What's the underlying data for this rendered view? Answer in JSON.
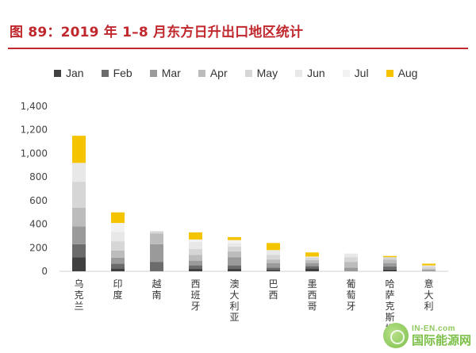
{
  "title": "图 89：2019 年 1–8 月东方日升出口地区统计",
  "watermark": {
    "top": "IN-EN.com",
    "bottom": "国际能源网"
  },
  "chart_data": {
    "type": "bar",
    "stacked": true,
    "title": "",
    "xlabel": "",
    "ylabel": "",
    "ylim": [
      0,
      1400
    ],
    "yticks": [
      "0",
      "200",
      "400",
      "600",
      "800",
      "1,000",
      "1,200",
      "1,400"
    ],
    "ytick_values": [
      0,
      200,
      400,
      600,
      800,
      1000,
      1200,
      1400
    ],
    "grid": false,
    "legend_position": "top",
    "categories": [
      "乌克兰",
      "印度",
      "越南",
      "西班牙",
      "澳大利亚",
      "巴西",
      "墨西哥",
      "葡萄牙",
      "哈萨克斯坦",
      "意大利"
    ],
    "series": [
      {
        "name": "Jan",
        "color": "#404040",
        "values": [
          120,
          25,
          0,
          20,
          20,
          10,
          25,
          0,
          15,
          0
        ]
      },
      {
        "name": "Feb",
        "color": "#6b6b6b",
        "values": [
          110,
          40,
          80,
          30,
          30,
          20,
          20,
          0,
          25,
          0
        ]
      },
      {
        "name": "Mar",
        "color": "#9a9a9a",
        "values": [
          150,
          50,
          150,
          40,
          70,
          40,
          25,
          30,
          30,
          10
        ]
      },
      {
        "name": "Apr",
        "color": "#bcbcbc",
        "values": [
          160,
          60,
          90,
          50,
          50,
          30,
          25,
          50,
          30,
          10
        ]
      },
      {
        "name": "May",
        "color": "#d6d6d6",
        "values": [
          220,
          80,
          20,
          50,
          40,
          40,
          20,
          40,
          20,
          20
        ]
      },
      {
        "name": "Jun",
        "color": "#e8e8e8",
        "values": [
          160,
          80,
          0,
          60,
          30,
          40,
          10,
          30,
          0,
          10
        ]
      },
      {
        "name": "Jul",
        "color": "#f2f2f2",
        "values": [
          0,
          75,
          0,
          20,
          25,
          0,
          0,
          0,
          0,
          0
        ]
      },
      {
        "name": "Aug",
        "color": "#f5c400",
        "values": [
          230,
          90,
          0,
          60,
          25,
          60,
          35,
          0,
          10,
          15
        ]
      }
    ]
  }
}
